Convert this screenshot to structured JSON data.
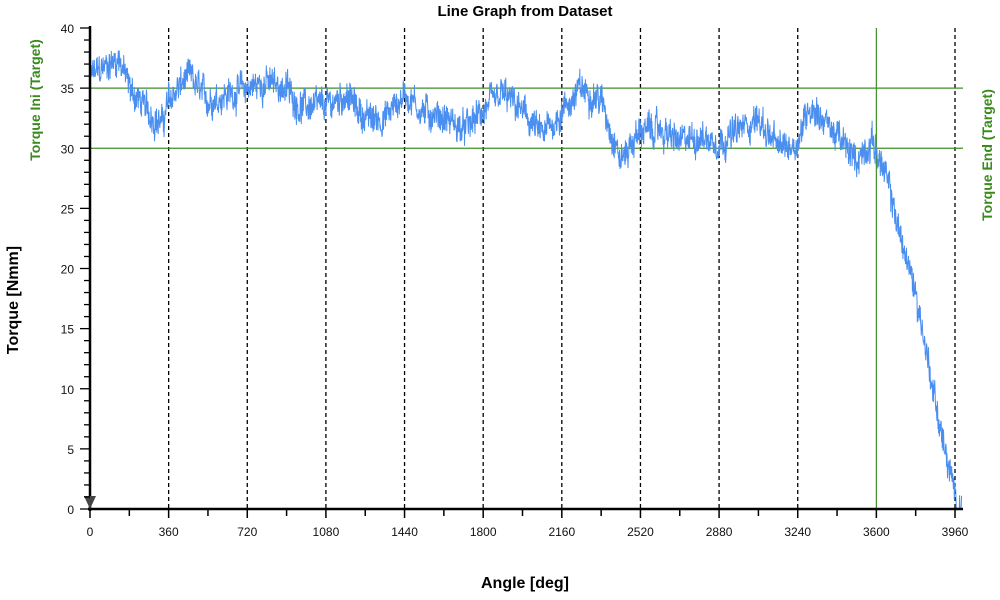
{
  "chart_data": {
    "type": "line",
    "title": "Line Graph from Dataset",
    "xlabel": "Angle [deg]",
    "ylabel": "Torque [Nmm]",
    "xlim": [
      0,
      4000
    ],
    "ylim": [
      0,
      40
    ],
    "x_ticks": [
      0,
      360,
      720,
      1080,
      1440,
      1800,
      2160,
      2520,
      2880,
      3240,
      3600,
      3960
    ],
    "y_ticks": [
      0,
      5,
      10,
      15,
      20,
      25,
      30,
      35,
      40
    ],
    "grid": "vertical dashed lines at every 360 deg",
    "reference_lines": {
      "horizontal": [
        {
          "label": "Torque Ini (Target)",
          "value": 35
        },
        {
          "label": "Torque End (Target)",
          "value": 30
        }
      ],
      "vertical": [
        {
          "value": 3600
        }
      ]
    },
    "series": [
      {
        "name": "Torque",
        "color": "#4a8ef0",
        "noise_amplitude": 1.3,
        "x": [
          0,
          90,
          135,
          180,
          270,
          330,
          360,
          450,
          540,
          630,
          720,
          810,
          900,
          960,
          1080,
          1170,
          1260,
          1350,
          1440,
          1530,
          1620,
          1710,
          1800,
          1890,
          1980,
          2070,
          2160,
          2250,
          2340,
          2430,
          2520,
          2610,
          2700,
          2790,
          2880,
          2970,
          3060,
          3150,
          3240,
          3290,
          3330,
          3420,
          3510,
          3580,
          3600,
          3660,
          3720,
          3780,
          3840,
          3900,
          3960,
          3990
        ],
        "y": [
          36,
          37,
          37.5,
          35,
          33,
          32,
          34,
          36,
          34,
          34.5,
          35,
          35.5,
          35,
          33.5,
          33.5,
          34.5,
          32.5,
          32.5,
          34.5,
          33,
          32.5,
          31.5,
          33,
          34.5,
          33,
          31,
          33,
          35,
          34,
          29,
          31.5,
          31.5,
          30.5,
          31,
          30.5,
          31.5,
          32.5,
          30,
          30.5,
          33.5,
          33,
          31,
          29,
          30.5,
          30,
          26.5,
          22,
          18,
          12,
          6,
          1,
          0
        ]
      }
    ],
    "colors": {
      "reference": "#3f8f2a",
      "label_green": "#3a8a1e",
      "grid": "#000000"
    }
  }
}
